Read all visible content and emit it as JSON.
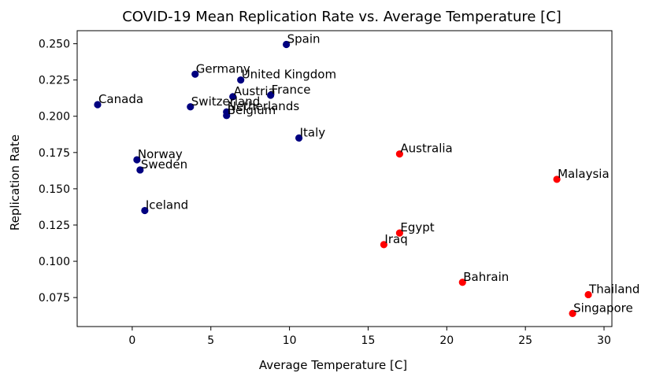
{
  "chart_data": {
    "type": "scatter",
    "title": "COVID-19 Mean Replication Rate vs. Average Temperature [C]",
    "xlabel": "Average Temperature [C]",
    "ylabel": "Replication Rate",
    "xlim": [
      -3.5,
      30.5
    ],
    "ylim": [
      0.055,
      0.259
    ],
    "xticks": [
      0,
      5,
      10,
      15,
      20,
      25,
      30
    ],
    "yticks": [
      0.075,
      0.1,
      0.125,
      0.15,
      0.175,
      0.2,
      0.225,
      0.25
    ],
    "ytick_labels": [
      "0.075",
      "0.100",
      "0.125",
      "0.150",
      "0.175",
      "0.200",
      "0.225",
      "0.250"
    ],
    "grid": false,
    "colors": {
      "navy": "#000080",
      "red": "#ff0000",
      "axis": "#000000",
      "text": "#000000",
      "background": "#ffffff"
    },
    "points": [
      {
        "label": "Spain",
        "x": 9.8,
        "y": 0.2495,
        "color": "navy"
      },
      {
        "label": "Germany",
        "x": 4.0,
        "y": 0.229,
        "color": "navy"
      },
      {
        "label": "United Kingdom",
        "x": 6.9,
        "y": 0.225,
        "color": "navy"
      },
      {
        "label": "Austria",
        "x": 6.4,
        "y": 0.2135,
        "color": "navy"
      },
      {
        "label": "France",
        "x": 8.8,
        "y": 0.2145,
        "color": "navy"
      },
      {
        "label": "Canada",
        "x": -2.2,
        "y": 0.208,
        "color": "navy"
      },
      {
        "label": "Switzerland",
        "x": 3.7,
        "y": 0.2065,
        "color": "navy"
      },
      {
        "label": "Netherlands",
        "x": 6.0,
        "y": 0.203,
        "color": "navy"
      },
      {
        "label": "Belgium",
        "x": 6.0,
        "y": 0.2005,
        "color": "navy"
      },
      {
        "label": "Italy",
        "x": 10.6,
        "y": 0.185,
        "color": "navy"
      },
      {
        "label": "Norway",
        "x": 0.3,
        "y": 0.17,
        "color": "navy"
      },
      {
        "label": "Sweden",
        "x": 0.5,
        "y": 0.163,
        "color": "navy"
      },
      {
        "label": "Iceland",
        "x": 0.8,
        "y": 0.135,
        "color": "navy"
      },
      {
        "label": "Australia",
        "x": 17.0,
        "y": 0.174,
        "color": "red"
      },
      {
        "label": "Malaysia",
        "x": 27.0,
        "y": 0.1565,
        "color": "red"
      },
      {
        "label": "Egypt",
        "x": 17.0,
        "y": 0.1195,
        "color": "red"
      },
      {
        "label": "Iraq",
        "x": 16.0,
        "y": 0.1115,
        "color": "red"
      },
      {
        "label": "Bahrain",
        "x": 21.0,
        "y": 0.0855,
        "color": "red"
      },
      {
        "label": "Thailand",
        "x": 29.0,
        "y": 0.077,
        "color": "red"
      },
      {
        "label": "Singapore",
        "x": 28.0,
        "y": 0.064,
        "color": "red"
      }
    ]
  }
}
